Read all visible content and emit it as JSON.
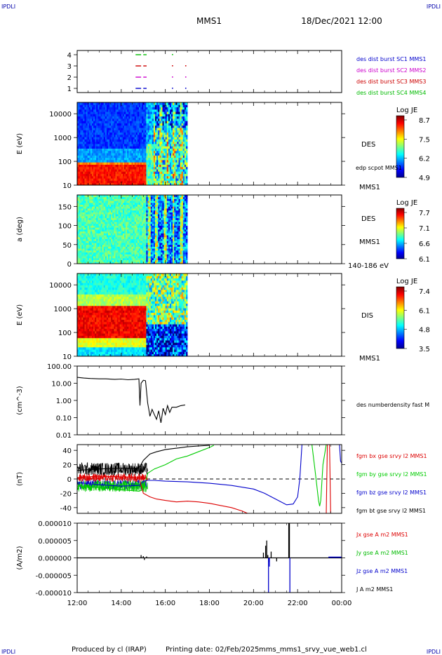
{
  "corner_label": "IPDLI",
  "header": {
    "title": "MMS1",
    "date": "18/Dec/2021 12:00"
  },
  "footer": {
    "produced": "Produced by cl (IRAP)",
    "printing": "Printing date: 02/Feb/2025",
    "file": "mms_mms1_srvy_vue_web1.cl"
  },
  "time_axis": {
    "ticks": [
      "12:00",
      "14:00",
      "16:00",
      "18:00",
      "20:00",
      "22:00",
      "00:00"
    ],
    "range_hours": [
      12,
      24
    ]
  },
  "chart_data": [
    {
      "type": "line",
      "id": "coverage",
      "yticks": [
        "1",
        "2",
        "3",
        "4"
      ],
      "legend": [
        {
          "name": "des dist burst SC1 MMS1",
          "color": "#0000cc"
        },
        {
          "name": "des dist burst SC2 MMS2",
          "color": "#cc00cc"
        },
        {
          "name": "des dist burst SC3 MMS3",
          "color": "#cc0000"
        },
        {
          "name": "des dist burst SC4 MMS4",
          "color": "#00bb00"
        }
      ],
      "rows": [
        {
          "y": 4,
          "color": "#00bb00",
          "intervals": [
            [
              14.65,
              14.9
            ],
            [
              15.0,
              15.15
            ]
          ],
          "dots": [
            16.3
          ]
        },
        {
          "y": 3,
          "color": "#cc0000",
          "intervals": [
            [
              14.65,
              14.9
            ],
            [
              15.0,
              15.15
            ]
          ],
          "dots": [
            16.3,
            16.9
          ]
        },
        {
          "y": 2,
          "color": "#cc00cc",
          "intervals": [
            [
              14.65,
              14.9
            ],
            [
              15.0,
              15.15
            ]
          ],
          "dots": [
            16.3,
            16.9
          ]
        },
        {
          "y": 1,
          "color": "#0000cc",
          "intervals": [
            [
              14.65,
              14.9
            ],
            [
              15.0,
              15.15
            ]
          ],
          "dots": [
            16.3,
            16.9
          ]
        }
      ]
    },
    {
      "type": "heatmap",
      "id": "des-energy",
      "ylabel": "E (eV)",
      "yscale": "log",
      "ylim": [
        10,
        30000
      ],
      "yticks": [
        "10",
        "100",
        "1000",
        "10000"
      ],
      "data_x_range": [
        12,
        17
      ],
      "label": "DES",
      "sublabel": "edp scpot MMS1",
      "sc": "MMS1",
      "colorbar": {
        "title": "Log JE",
        "ticks": [
          "8.7",
          "7.5",
          "6.2",
          "4.9"
        ]
      }
    },
    {
      "type": "heatmap",
      "id": "des-pitch",
      "ylabel": "a (deg)",
      "ylim": [
        0,
        180
      ],
      "yticks": [
        "0",
        "50",
        "100",
        "150"
      ],
      "data_x_range": [
        12,
        17
      ],
      "label": "DES",
      "sc": "MMS1",
      "range_note": "140-186 eV",
      "colorbar": {
        "title": "Log JE",
        "ticks": [
          "7.7",
          "7.1",
          "6.6",
          "6.1"
        ]
      }
    },
    {
      "type": "heatmap",
      "id": "dis-energy",
      "ylabel": "E (eV)",
      "yscale": "log",
      "ylim": [
        10,
        30000
      ],
      "yticks": [
        "10",
        "100",
        "1000",
        "10000"
      ],
      "data_x_range": [
        12,
        17
      ],
      "label": "DIS",
      "sc": "MMS1",
      "colorbar": {
        "title": "Log JE",
        "ticks": [
          "7.4",
          "6.1",
          "4.8",
          "3.5"
        ]
      }
    },
    {
      "type": "line",
      "id": "density",
      "ylabel": "(cm^-3)",
      "yscale": "log",
      "ylim": [
        0.01,
        100
      ],
      "yticks": [
        "0.01",
        "0.10",
        "1.00",
        "10.00",
        "100.00"
      ],
      "legend": [
        {
          "name": "des numberdensity fast M",
          "color": "#000000"
        }
      ],
      "series": [
        {
          "color": "#000000",
          "x": [
            12.0,
            12.3,
            12.6,
            13.0,
            13.3,
            13.7,
            14.0,
            14.3,
            14.6,
            14.8,
            14.85,
            14.9,
            15.0,
            15.1,
            15.2,
            15.25,
            15.3,
            15.4,
            15.5,
            15.6,
            15.7,
            15.8,
            15.9,
            16.0,
            16.1,
            16.2,
            16.3,
            16.5,
            16.7,
            16.9
          ],
          "y": [
            22,
            20,
            19,
            18,
            18,
            17,
            17.5,
            16,
            17,
            18,
            0.5,
            10,
            15,
            14,
            0.7,
            0.3,
            0.12,
            0.3,
            0.15,
            0.08,
            0.25,
            0.05,
            0.35,
            0.15,
            0.5,
            0.2,
            0.4,
            0.4,
            0.5,
            0.55
          ]
        }
      ]
    },
    {
      "type": "line",
      "id": "field",
      "ylabel": "(nT)",
      "ylim": [
        -48,
        48
      ],
      "yticks": [
        "-40",
        "-20",
        "0",
        "20",
        "40"
      ],
      "legend": [
        {
          "name": "fgm bx gse srvy l2 MMS1",
          "color": "#dd0000"
        },
        {
          "name": "fgm by gse srvy l2 MMS1",
          "color": "#00cc00"
        },
        {
          "name": "fgm bz gse srvy l2 MMS1",
          "color": "#0000cc"
        },
        {
          "name": "fgm bt gse srvy l2 MMS1",
          "color": "#000000"
        }
      ],
      "series": [
        {
          "color": "#00cc00",
          "x": [
            12.0,
            13.0,
            14.0,
            14.8,
            15.0,
            15.2,
            15.5,
            16.0,
            16.5,
            17.0,
            17.5,
            18.0,
            18.2
          ],
          "y": [
            -10,
            -12,
            -15,
            -17,
            -15,
            8,
            14,
            20,
            28,
            32,
            38,
            44,
            47
          ]
        },
        {
          "color": "#0000cc",
          "x": [
            12.0,
            13.0,
            14.0,
            14.8,
            15.0,
            15.2,
            15.5,
            16.0,
            17.0,
            18.0,
            19.0,
            20.0,
            20.5,
            21.0,
            21.5,
            21.8,
            22.0,
            22.1,
            22.2
          ],
          "y": [
            -5,
            -8,
            -10,
            -9,
            -3,
            -2,
            -2,
            -3,
            -4,
            -6,
            -9,
            -14,
            -20,
            -28,
            -36,
            -35,
            -25,
            0,
            48
          ]
        },
        {
          "color": "#00cc00",
          "x": [
            22.65,
            22.8,
            22.95,
            23.0,
            23.05,
            23.15,
            23.3
          ],
          "y": [
            48,
            10,
            -30,
            -38,
            -30,
            20,
            48
          ]
        },
        {
          "color": "#0000cc",
          "x": [
            23.9,
            23.95,
            24.0
          ],
          "y": [
            48,
            25,
            22
          ]
        },
        {
          "color": "#dd0000",
          "x": [
            12.0,
            13.0,
            14.0,
            14.8,
            15.0,
            15.3,
            15.6,
            16.0,
            16.5,
            17.0,
            17.5,
            18.0,
            18.5,
            19.0,
            19.5,
            19.8
          ],
          "y": [
            2,
            4,
            3,
            2,
            -20,
            -25,
            -28,
            -30,
            -32,
            -31,
            -32,
            -34,
            -37,
            -40,
            -45,
            -49
          ]
        },
        {
          "color": "#dd0000",
          "x": [
            23.3,
            23.35,
            23.45,
            23.5
          ],
          "y": [
            -49,
            48,
            48,
            -49
          ]
        },
        {
          "color": "#000000",
          "x": [
            12.0,
            13.0,
            14.0,
            14.8,
            15.0,
            15.3,
            15.6,
            16.0,
            16.5,
            17.0,
            17.5,
            18.0
          ],
          "y": [
            12,
            14,
            15,
            15,
            26,
            35,
            38,
            41,
            43,
            45,
            46,
            47
          ]
        }
      ]
    },
    {
      "type": "line",
      "id": "current",
      "ylabel": "(A/m2)",
      "ylim": [
        -1e-05,
        1e-05
      ],
      "yticks": [
        "-0.000010",
        "-0.000005",
        "0.000000",
        "0.000005",
        "0.000010"
      ],
      "legend": [
        {
          "name": "Jx gse A m2 MMS1",
          "color": "#dd0000"
        },
        {
          "name": "Jy gse A m2 MMS1",
          "color": "#00bb00"
        },
        {
          "name": "Jz gse A m2 MMS1",
          "color": "#0000cc"
        },
        {
          "name": "J A m2 MMS1",
          "color": "#000000"
        }
      ],
      "spikes": [
        {
          "color": "#000000",
          "x": [
            14.9,
            15.0,
            15.05,
            15.15
          ],
          "y": [
            8e-07,
            5e-07,
            -6e-07,
            4e-07
          ]
        },
        {
          "color": "#000000",
          "x": [
            20.45,
            20.55,
            20.6,
            20.65,
            20.7,
            20.8,
            21.05
          ],
          "y": [
            1.5e-06,
            3.5e-06,
            5e-06,
            8e-07,
            -1.2e-06,
            1.8e-06,
            -1e-06
          ]
        },
        {
          "color": "#0000cc",
          "x": [
            20.68,
            20.72,
            21.65
          ],
          "y": [
            -1e-05,
            -2.5e-06,
            -1e-05
          ]
        },
        {
          "color": "#000000",
          "x": [
            21.6,
            21.63
          ],
          "y": [
            1e-05,
            1e-05
          ]
        }
      ]
    }
  ]
}
